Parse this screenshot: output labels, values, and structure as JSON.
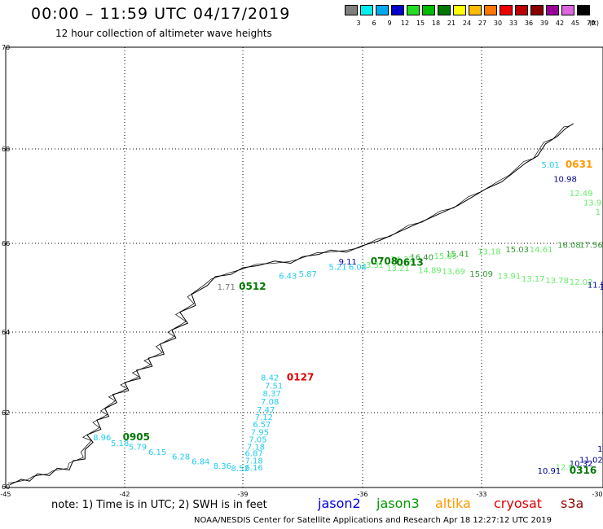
{
  "header": {
    "title": "00:00 – 11:59 UTC 04/17/2019",
    "subtitle": "12 hour collection of altimeter wave heights"
  },
  "scale": {
    "labels": [
      "3",
      "6",
      "9",
      "12",
      "15",
      "18",
      "21",
      "24",
      "27",
      "30",
      "33",
      "36",
      "39",
      "42",
      "45",
      "70"
    ],
    "colors": [
      "#7f7f7f",
      "#00eeee",
      "#00aaee",
      "#0000cc",
      "#22dd22",
      "#00bb00",
      "#007700",
      "#ffff00",
      "#ffbb00",
      "#ff7700",
      "#ee0000",
      "#bb0000",
      "#880000",
      "#990099",
      "#dd66dd",
      "#000000"
    ],
    "unit": "(ft)"
  },
  "axes": {
    "lon_labels": [
      "-45",
      "-42",
      "-39",
      "-36",
      "-33",
      "-30"
    ],
    "lat_labels": [
      "70",
      "68",
      "66",
      "64",
      "62",
      "60"
    ]
  },
  "coast_color": "#000000",
  "observations": [
    {
      "text": "5.01",
      "color": "#22ccee",
      "lon": -31.5,
      "lat": 67.6
    },
    {
      "text": "0631",
      "color": "#ff9900",
      "lon": -30.9,
      "lat": 67.6,
      "pass": true
    },
    {
      "text": "10.98",
      "color": "#000099",
      "lon": -31.2,
      "lat": 67.3
    },
    {
      "text": "12.49",
      "color": "#66ee66",
      "lon": -30.8,
      "lat": 67.0
    },
    {
      "text": "13.9",
      "color": "#66ee66",
      "lon": -30.45,
      "lat": 66.8
    },
    {
      "text": "1",
      "color": "#66ee66",
      "lon": -30.15,
      "lat": 66.6
    },
    {
      "text": "16.08",
      "color": "#339933",
      "lon": -31.1,
      "lat": 65.9
    },
    {
      "text": "17.56",
      "color": "#339933",
      "lon": -30.55,
      "lat": 65.9
    },
    {
      "text": "14.61",
      "color": "#66ee66",
      "lon": -31.8,
      "lat": 65.8
    },
    {
      "text": "15.03",
      "color": "#339933",
      "lon": -32.4,
      "lat": 65.8
    },
    {
      "text": "13.18",
      "color": "#66ee66",
      "lon": -33.1,
      "lat": 65.75
    },
    {
      "text": "15.41",
      "color": "#339933",
      "lon": -33.9,
      "lat": 65.7
    },
    {
      "text": "15.05",
      "color": "#66ee66",
      "lon": -34.2,
      "lat": 65.65
    },
    {
      "text": "16.40",
      "color": "#339933",
      "lon": -34.8,
      "lat": 65.62
    },
    {
      "text": "14.32",
      "color": "#66ee66",
      "lon": -35.3,
      "lat": 65.58
    },
    {
      "text": "9.11",
      "color": "#000099",
      "lon": -36.6,
      "lat": 65.52
    },
    {
      "text": "0708",
      "color": "#007700",
      "lon": -35.8,
      "lat": 65.52,
      "pass": true
    },
    {
      "text": "0613",
      "color": "#007700",
      "lon": -35.15,
      "lat": 65.5,
      "pass": true
    },
    {
      "text": "13.31",
      "color": "#66ee66",
      "lon": -36.05,
      "lat": 65.45
    },
    {
      "text": "13.21",
      "color": "#66ee66",
      "lon": -35.4,
      "lat": 65.38
    },
    {
      "text": "14.89",
      "color": "#66ee66",
      "lon": -34.6,
      "lat": 65.33
    },
    {
      "text": "13.69",
      "color": "#66ee66",
      "lon": -34.0,
      "lat": 65.3
    },
    {
      "text": "15.09",
      "color": "#339933",
      "lon": -33.3,
      "lat": 65.25
    },
    {
      "text": "13.91",
      "color": "#66ee66",
      "lon": -32.6,
      "lat": 65.2
    },
    {
      "text": "13.17",
      "color": "#66ee66",
      "lon": -32.0,
      "lat": 65.14
    },
    {
      "text": "13.78",
      "color": "#66ee66",
      "lon": -31.4,
      "lat": 65.1
    },
    {
      "text": "12.02",
      "color": "#66ee66",
      "lon": -30.8,
      "lat": 65.06
    },
    {
      "text": "11.59",
      "color": "#000099",
      "lon": -30.35,
      "lat": 65.0
    },
    {
      "text": "11",
      "color": "#000099",
      "lon": -30.05,
      "lat": 64.95
    },
    {
      "text": "5.21",
      "color": "#22ccee",
      "lon": -36.85,
      "lat": 65.4
    },
    {
      "text": "6.04",
      "color": "#22ccee",
      "lon": -36.35,
      "lat": 65.4
    },
    {
      "text": "6.43",
      "color": "#22ccee",
      "lon": -38.1,
      "lat": 65.2
    },
    {
      "text": "5.87",
      "color": "#22ccee",
      "lon": -37.6,
      "lat": 65.25
    },
    {
      "text": "1.71",
      "color": "#777777",
      "lon": -39.65,
      "lat": 64.95
    },
    {
      "text": "0512",
      "color": "#007700",
      "lon": -39.1,
      "lat": 64.95,
      "pass": true
    },
    {
      "text": "8.42",
      "color": "#22ccee",
      "lon": -38.55,
      "lat": 62.8
    },
    {
      "text": "0127",
      "color": "#dd0000",
      "lon": -37.9,
      "lat": 62.8,
      "pass": true
    },
    {
      "text": "7.51",
      "color": "#22ccee",
      "lon": -38.45,
      "lat": 62.6
    },
    {
      "text": "8.37",
      "color": "#22ccee",
      "lon": -38.5,
      "lat": 62.4
    },
    {
      "text": "7.08",
      "color": "#22ccee",
      "lon": -38.55,
      "lat": 62.2
    },
    {
      "text": "7.47",
      "color": "#22ccee",
      "lon": -38.65,
      "lat": 62.0
    },
    {
      "text": "7.12",
      "color": "#22ccee",
      "lon": -38.7,
      "lat": 61.8
    },
    {
      "text": "6.57",
      "color": "#22ccee",
      "lon": -38.75,
      "lat": 61.6
    },
    {
      "text": "7.95",
      "color": "#22ccee",
      "lon": -38.8,
      "lat": 61.4
    },
    {
      "text": "7.05",
      "color": "#22ccee",
      "lon": -38.85,
      "lat": 61.2
    },
    {
      "text": "7.18",
      "color": "#22ccee",
      "lon": -38.9,
      "lat": 61.0
    },
    {
      "text": "6.87",
      "color": "#22ccee",
      "lon": -38.95,
      "lat": 60.82
    },
    {
      "text": "7.18",
      "color": "#22ccee",
      "lon": -38.95,
      "lat": 60.63
    },
    {
      "text": "6.16",
      "color": "#22ccee",
      "lon": -38.95,
      "lat": 60.44
    },
    {
      "text": "8.52",
      "color": "#22ccee",
      "lon": -39.3,
      "lat": 60.42
    },
    {
      "text": "8.36",
      "color": "#22ccee",
      "lon": -39.75,
      "lat": 60.48
    },
    {
      "text": "6.84",
      "color": "#22ccee",
      "lon": -40.3,
      "lat": 60.6
    },
    {
      "text": "6.28",
      "color": "#22ccee",
      "lon": -40.8,
      "lat": 60.74
    },
    {
      "text": "6.15",
      "color": "#22ccee",
      "lon": -41.4,
      "lat": 60.86
    },
    {
      "text": "5.79",
      "color": "#22ccee",
      "lon": -41.9,
      "lat": 61.0
    },
    {
      "text": "5.18",
      "color": "#22ccee",
      "lon": -42.35,
      "lat": 61.1
    },
    {
      "text": "8.96",
      "color": "#22ccee",
      "lon": -42.8,
      "lat": 61.25
    },
    {
      "text": "0905",
      "color": "#007700",
      "lon": -42.05,
      "lat": 61.25,
      "pass": true
    },
    {
      "text": "11",
      "color": "#000099",
      "lon": -30.1,
      "lat": 60.95
    },
    {
      "text": "11.02",
      "color": "#000099",
      "lon": -30.55,
      "lat": 60.65
    },
    {
      "text": "10.32",
      "color": "#000099",
      "lon": -30.8,
      "lat": 60.55
    },
    {
      "text": "12.9",
      "color": "#66ee66",
      "lon": -31.15,
      "lat": 60.45
    },
    {
      "text": "10.91",
      "color": "#000099",
      "lon": -31.6,
      "lat": 60.35
    },
    {
      "text": "0316",
      "color": "#007700",
      "lon": -30.8,
      "lat": 60.35,
      "pass": true
    }
  ],
  "footer": {
    "note": "note: 1) Time is in UTC; 2) SWH is in feet",
    "satellites": [
      {
        "name": "jason2",
        "color": "#0000dd"
      },
      {
        "name": "jason3",
        "color": "#009900"
      },
      {
        "name": "altika",
        "color": "#ff9900"
      },
      {
        "name": "cryosat",
        "color": "#dd0000"
      },
      {
        "name": "s3a",
        "color": "#990000"
      }
    ],
    "credit": "NOAA/NESDIS Center for Satellite Applications and Research    Apr 18 12:27:12 UTC 2019"
  }
}
